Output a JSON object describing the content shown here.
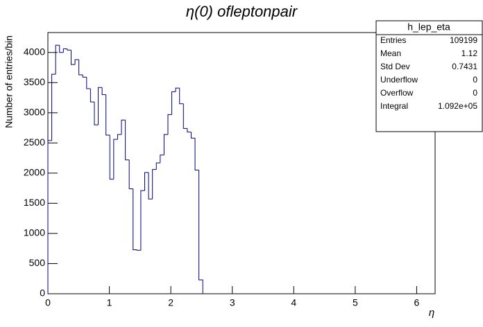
{
  "chart_data": {
    "type": "histogram",
    "title": "η(0) ofleptonpair",
    "xlabel": "η",
    "ylabel": "Number of entries/bin",
    "bins": [
      0,
      0.063,
      0.126,
      0.189,
      0.252,
      0.315,
      0.378,
      0.441,
      0.504,
      0.567,
      0.63,
      0.693,
      0.756,
      0.819,
      0.882,
      0.945,
      1.008,
      1.071,
      1.134,
      1.197,
      1.26,
      1.323,
      1.386,
      1.449,
      1.512,
      1.575,
      1.638,
      1.701,
      1.764,
      1.827,
      1.89,
      1.953,
      2.016,
      2.079,
      2.142,
      2.205,
      2.268,
      2.331,
      2.394,
      2.457,
      2.52
    ],
    "counts": [
      2540,
      3640,
      4120,
      4000,
      4060,
      4040,
      3800,
      3880,
      3630,
      3590,
      3400,
      3180,
      2800,
      3420,
      3300,
      2630,
      1900,
      2560,
      2640,
      2880,
      2220,
      1740,
      730,
      720,
      1710,
      2010,
      1570,
      2060,
      2170,
      2300,
      2640,
      2970,
      3350,
      3410,
      3150,
      2740,
      2680,
      2580,
      2050,
      230
    ],
    "color": "#000080",
    "xlim": [
      0,
      6.3
    ],
    "ylim": [
      0,
      4330
    ],
    "xticks": [
      0,
      1,
      2,
      3,
      4,
      5,
      6
    ],
    "yticks": [
      0,
      500,
      1000,
      1500,
      2000,
      2500,
      3000,
      3500,
      4000
    ],
    "stats": {
      "name": "h_lep_eta",
      "rows": [
        [
          "Entries",
          "109199"
        ],
        [
          "Mean",
          "1.12"
        ],
        [
          "Std Dev",
          "0.7431"
        ],
        [
          "Underflow",
          "0"
        ],
        [
          "Overflow",
          "0"
        ],
        [
          "Integral",
          "1.092e+05"
        ]
      ]
    }
  }
}
